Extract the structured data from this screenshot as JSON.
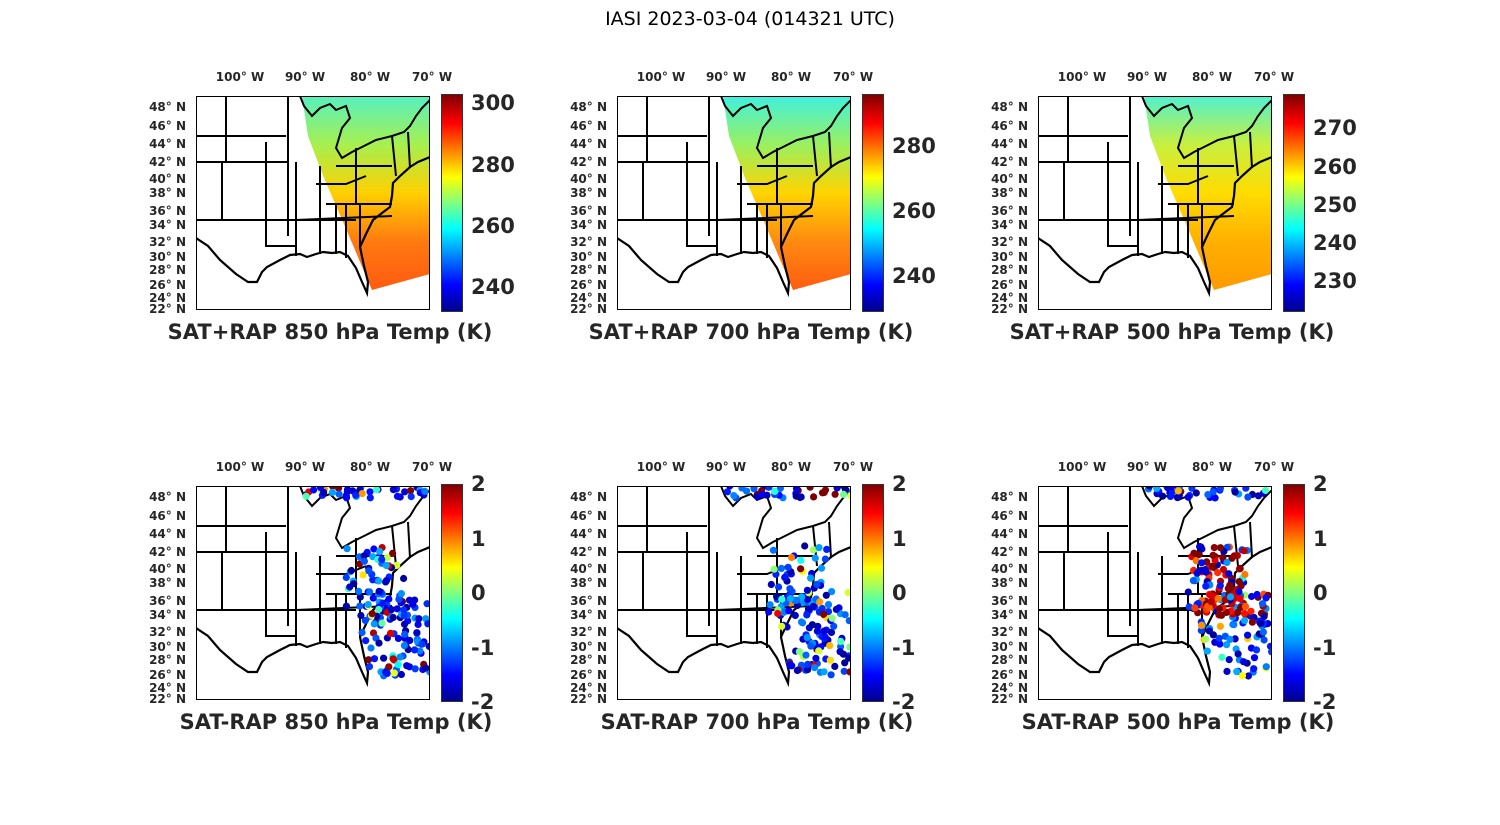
{
  "title": "IASI 2023-03-04 (014321 UTC)",
  "lon_labels": [
    "100° W",
    "90° W",
    "80° W",
    "70° W"
  ],
  "lat_labels": [
    "48° N",
    "46° N",
    "44° N",
    "42° N",
    "40° N",
    "38° N",
    "36° N",
    "34° N",
    "32° N",
    "30° N",
    "28° N",
    "26° N",
    "24° N",
    "22° N"
  ],
  "panels": [
    {
      "title": "SAT+RAP 850 hPa Temp (K)",
      "kind": "field",
      "clim": [
        232,
        303
      ],
      "ticks": [
        "240",
        "260",
        "280",
        "300"
      ],
      "tick_values": [
        240,
        260,
        280,
        300
      ],
      "colors": [
        "#56f0c0",
        "#a6f050",
        "#ffd000",
        "#ff7a10",
        "#ff5a10"
      ]
    },
    {
      "title": "SAT+RAP 700 hPa Temp (K)",
      "kind": "field",
      "clim": [
        229,
        296
      ],
      "ticks": [
        "240",
        "260",
        "280"
      ],
      "tick_values": [
        240,
        260,
        280
      ],
      "colors": [
        "#40f0e0",
        "#9af060",
        "#ffd400",
        "#ff8a10",
        "#ff5c10"
      ]
    },
    {
      "title": "SAT+RAP 500 hPa Temp (K)",
      "kind": "field",
      "clim": [
        222,
        279
      ],
      "ticks": [
        "230",
        "240",
        "250",
        "260",
        "270"
      ],
      "tick_values": [
        230,
        240,
        250,
        260,
        270
      ],
      "colors": [
        "#50f0d0",
        "#c8f040",
        "#ffdc00",
        "#ffb000",
        "#ff9a00"
      ]
    },
    {
      "title": "SAT-RAP 850 hPa Temp (K)",
      "kind": "diff",
      "clim": [
        -2,
        2
      ],
      "ticks": [
        "2",
        "1",
        "0",
        "-1",
        "-2"
      ],
      "tick_values": [
        2,
        1,
        0,
        -1,
        -2
      ]
    },
    {
      "title": "SAT-RAP 700 hPa Temp (K)",
      "kind": "diff",
      "clim": [
        -2,
        2
      ],
      "ticks": [
        "2",
        "1",
        "0",
        "-1",
        "-2"
      ],
      "tick_values": [
        2,
        1,
        0,
        -1,
        -2
      ]
    },
    {
      "title": "SAT-RAP 500 hPa Temp (K)",
      "kind": "diff",
      "clim": [
        -2,
        2
      ],
      "ticks": [
        "2",
        "1",
        "0",
        "-1",
        "-2"
      ],
      "tick_values": [
        2,
        1,
        0,
        -1,
        -2
      ]
    }
  ]
}
